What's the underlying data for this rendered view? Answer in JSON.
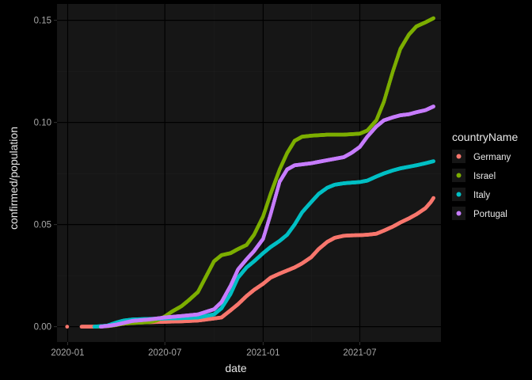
{
  "chart_data": {
    "type": "scatter",
    "title": "",
    "xlabel": "date",
    "ylabel": "confirmed/population",
    "x_type": "date",
    "xlim": [
      "2019-12-12",
      "2021-11-30"
    ],
    "ylim": [
      -0.0075,
      0.158
    ],
    "x_ticks": [
      {
        "value": "2020-01-01",
        "label": "2020-01"
      },
      {
        "value": "2020-07-01",
        "label": "2020-07"
      },
      {
        "value": "2021-01-01",
        "label": "2021-01"
      },
      {
        "value": "2021-07-01",
        "label": "2021-07"
      }
    ],
    "y_ticks": [
      {
        "value": 0.0,
        "label": "0.00"
      },
      {
        "value": 0.05,
        "label": "0.05"
      },
      {
        "value": 0.1,
        "label": "0.10"
      },
      {
        "value": 0.15,
        "label": "0.15"
      }
    ],
    "grid": true,
    "legend": {
      "title": "countryName",
      "position": "right"
    },
    "series": [
      {
        "name": "Germany",
        "color": "#F8766D",
        "points": [
          [
            "2019-12-31",
            0.0
          ],
          [
            "2020-01-27",
            0.0
          ],
          [
            "2020-03-01",
            0.0
          ],
          [
            "2020-04-01",
            0.001
          ],
          [
            "2020-05-01",
            0.002
          ],
          [
            "2020-06-01",
            0.0022
          ],
          [
            "2020-07-01",
            0.0024
          ],
          [
            "2020-08-01",
            0.0026
          ],
          [
            "2020-09-01",
            0.003
          ],
          [
            "2020-10-01",
            0.004
          ],
          [
            "2020-10-15",
            0.0045
          ],
          [
            "2020-11-01",
            0.008
          ],
          [
            "2020-11-15",
            0.011
          ],
          [
            "2020-12-01",
            0.015
          ],
          [
            "2020-12-15",
            0.018
          ],
          [
            "2021-01-01",
            0.021
          ],
          [
            "2021-01-15",
            0.024
          ],
          [
            "2021-02-01",
            0.026
          ],
          [
            "2021-02-15",
            0.0275
          ],
          [
            "2021-03-01",
            0.029
          ],
          [
            "2021-03-15",
            0.031
          ],
          [
            "2021-04-01",
            0.034
          ],
          [
            "2021-04-15",
            0.038
          ],
          [
            "2021-05-01",
            0.0415
          ],
          [
            "2021-05-15",
            0.0435
          ],
          [
            "2021-06-01",
            0.0445
          ],
          [
            "2021-06-15",
            0.0447
          ],
          [
            "2021-07-01",
            0.0448
          ],
          [
            "2021-07-15",
            0.045
          ],
          [
            "2021-08-01",
            0.0455
          ],
          [
            "2021-08-15",
            0.047
          ],
          [
            "2021-09-01",
            0.049
          ],
          [
            "2021-09-15",
            0.051
          ],
          [
            "2021-10-01",
            0.053
          ],
          [
            "2021-10-15",
            0.055
          ],
          [
            "2021-11-01",
            0.058
          ],
          [
            "2021-11-11",
            0.061
          ],
          [
            "2021-11-16",
            0.063
          ]
        ]
      },
      {
        "name": "Israel",
        "color": "#7CAE00",
        "points": [
          [
            "2020-02-21",
            0.0
          ],
          [
            "2020-03-15",
            0.0002
          ],
          [
            "2020-04-01",
            0.0008
          ],
          [
            "2020-04-15",
            0.0015
          ],
          [
            "2020-05-01",
            0.0018
          ],
          [
            "2020-06-01",
            0.0022
          ],
          [
            "2020-06-15",
            0.003
          ],
          [
            "2020-07-01",
            0.005
          ],
          [
            "2020-07-15",
            0.0075
          ],
          [
            "2020-08-01",
            0.01
          ],
          [
            "2020-08-15",
            0.013
          ],
          [
            "2020-09-01",
            0.017
          ],
          [
            "2020-09-15",
            0.024
          ],
          [
            "2020-10-01",
            0.032
          ],
          [
            "2020-10-15",
            0.035
          ],
          [
            "2020-11-01",
            0.036
          ],
          [
            "2020-11-15",
            0.038
          ],
          [
            "2020-12-01",
            0.04
          ],
          [
            "2020-12-15",
            0.045
          ],
          [
            "2021-01-01",
            0.054
          ],
          [
            "2021-01-15",
            0.065
          ],
          [
            "2021-02-01",
            0.077
          ],
          [
            "2021-02-15",
            0.085
          ],
          [
            "2021-03-01",
            0.091
          ],
          [
            "2021-03-15",
            0.093
          ],
          [
            "2021-04-01",
            0.0935
          ],
          [
            "2021-05-01",
            0.094
          ],
          [
            "2021-06-01",
            0.094
          ],
          [
            "2021-07-01",
            0.0945
          ],
          [
            "2021-07-15",
            0.096
          ],
          [
            "2021-08-01",
            0.101
          ],
          [
            "2021-08-15",
            0.11
          ],
          [
            "2021-09-01",
            0.125
          ],
          [
            "2021-09-15",
            0.136
          ],
          [
            "2021-10-01",
            0.143
          ],
          [
            "2021-10-15",
            0.147
          ],
          [
            "2021-11-01",
            0.149
          ],
          [
            "2021-11-16",
            0.151
          ]
        ]
      },
      {
        "name": "Italy",
        "color": "#00BFC4",
        "points": [
          [
            "2020-02-20",
            0.0
          ],
          [
            "2020-03-15",
            0.0005
          ],
          [
            "2020-04-01",
            0.002
          ],
          [
            "2020-04-15",
            0.003
          ],
          [
            "2020-05-01",
            0.0035
          ],
          [
            "2020-06-01",
            0.0038
          ],
          [
            "2020-07-01",
            0.004
          ],
          [
            "2020-08-01",
            0.0042
          ],
          [
            "2020-09-01",
            0.0045
          ],
          [
            "2020-10-01",
            0.006
          ],
          [
            "2020-10-15",
            0.009
          ],
          [
            "2020-11-01",
            0.016
          ],
          [
            "2020-11-15",
            0.024
          ],
          [
            "2020-12-01",
            0.029
          ],
          [
            "2020-12-15",
            0.032
          ],
          [
            "2021-01-01",
            0.036
          ],
          [
            "2021-01-15",
            0.039
          ],
          [
            "2021-02-01",
            0.042
          ],
          [
            "2021-02-15",
            0.045
          ],
          [
            "2021-03-01",
            0.05
          ],
          [
            "2021-03-15",
            0.056
          ],
          [
            "2021-04-01",
            0.061
          ],
          [
            "2021-04-15",
            0.065
          ],
          [
            "2021-05-01",
            0.068
          ],
          [
            "2021-05-15",
            0.0695
          ],
          [
            "2021-06-01",
            0.0702
          ],
          [
            "2021-06-15",
            0.0705
          ],
          [
            "2021-07-01",
            0.0708
          ],
          [
            "2021-07-15",
            0.0715
          ],
          [
            "2021-08-01",
            0.0735
          ],
          [
            "2021-08-15",
            0.075
          ],
          [
            "2021-09-01",
            0.0765
          ],
          [
            "2021-09-15",
            0.0775
          ],
          [
            "2021-10-01",
            0.0783
          ],
          [
            "2021-10-15",
            0.079
          ],
          [
            "2021-11-01",
            0.08
          ],
          [
            "2021-11-16",
            0.081
          ]
        ]
      },
      {
        "name": "Portugal",
        "color": "#C77CFF",
        "points": [
          [
            "2020-03-03",
            0.0
          ],
          [
            "2020-03-20",
            0.0005
          ],
          [
            "2020-04-01",
            0.001
          ],
          [
            "2020-05-01",
            0.0028
          ],
          [
            "2020-06-01",
            0.0035
          ],
          [
            "2020-07-01",
            0.0045
          ],
          [
            "2020-08-01",
            0.0052
          ],
          [
            "2020-09-01",
            0.006
          ],
          [
            "2020-10-01",
            0.0085
          ],
          [
            "2020-10-15",
            0.012
          ],
          [
            "2020-11-01",
            0.02
          ],
          [
            "2020-11-15",
            0.028
          ],
          [
            "2020-12-01",
            0.033
          ],
          [
            "2020-12-15",
            0.037
          ],
          [
            "2021-01-01",
            0.043
          ],
          [
            "2021-01-15",
            0.055
          ],
          [
            "2021-02-01",
            0.071
          ],
          [
            "2021-02-15",
            0.077
          ],
          [
            "2021-03-01",
            0.079
          ],
          [
            "2021-04-01",
            0.08
          ],
          [
            "2021-05-01",
            0.0815
          ],
          [
            "2021-06-01",
            0.083
          ],
          [
            "2021-06-15",
            0.085
          ],
          [
            "2021-07-01",
            0.088
          ],
          [
            "2021-07-15",
            0.093
          ],
          [
            "2021-08-01",
            0.098
          ],
          [
            "2021-08-15",
            0.101
          ],
          [
            "2021-09-01",
            0.1025
          ],
          [
            "2021-09-15",
            0.1035
          ],
          [
            "2021-10-01",
            0.104
          ],
          [
            "2021-10-15",
            0.105
          ],
          [
            "2021-11-01",
            0.106
          ],
          [
            "2021-11-16",
            0.1078
          ]
        ]
      }
    ]
  },
  "colors": {
    "page_background": "#000000",
    "panel_background": "#161616",
    "grid_major": "#000000",
    "grid_minor": "#1e1e1e"
  }
}
